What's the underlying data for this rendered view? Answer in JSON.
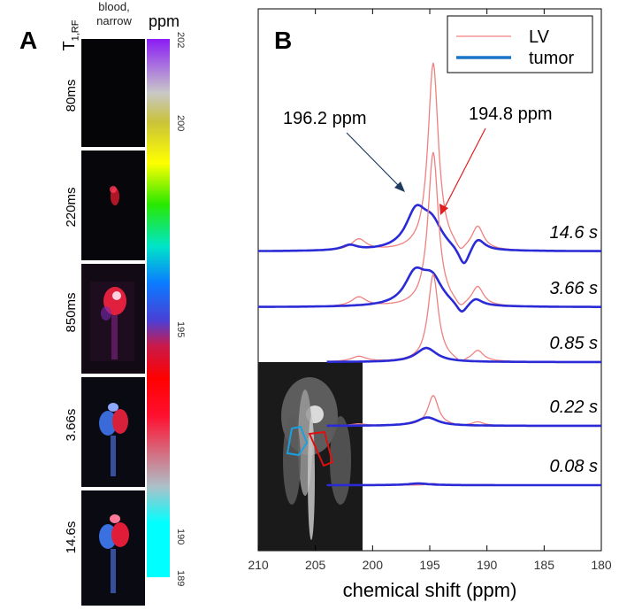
{
  "panel_a": {
    "letter": "A",
    "title_t": "T",
    "title_sub": "1,RF",
    "header_line1": "blood,",
    "header_line2": "narrow",
    "ppm_label": "ppm",
    "rows": [
      {
        "label": "80ms"
      },
      {
        "label": "220ms"
      },
      {
        "label": "850ms"
      },
      {
        "label": "3.66s"
      },
      {
        "label": "14.6s"
      }
    ],
    "colorbar_ticks": [
      "202",
      "200",
      "195",
      "190",
      "189"
    ],
    "colorbar_tick_values": [
      202,
      200,
      195,
      190,
      189
    ],
    "colorbar_range": [
      189,
      202
    ],
    "colorbar_stops": [
      {
        "value": 202,
        "color": "#8a1cf5"
      },
      {
        "value": 200.7,
        "color": "#c8c8c8"
      },
      {
        "value": 200,
        "color": "#c9c23a"
      },
      {
        "value": 199,
        "color": "#ffff00"
      },
      {
        "value": 198,
        "color": "#28e800"
      },
      {
        "value": 197,
        "color": "#00e5c8"
      },
      {
        "value": 196.1,
        "color": "#0a7bff"
      },
      {
        "value": 195.2,
        "color": "#4a3fd6"
      },
      {
        "value": 194.6,
        "color": "#c81a4b"
      },
      {
        "value": 193.8,
        "color": "#ff0000"
      },
      {
        "value": 192.9,
        "color": "#ff1030"
      },
      {
        "value": 191.2,
        "color": "#aec0c8"
      },
      {
        "value": 190.3,
        "color": "#00ffff"
      },
      {
        "value": 189,
        "color": "#00ffff"
      }
    ]
  },
  "panel_b": {
    "letter": "B",
    "annotation_left": "196.2 ppm",
    "annotation_right": "194.8 ppm",
    "colors": {
      "lv": "#f08080",
      "tumor": "#2a2ad6",
      "frame": "#000000"
    }
  },
  "chart_data": {
    "type": "line",
    "title": "",
    "xlabel": "chemical shift (ppm)",
    "ylabel": "",
    "xlim": [
      210,
      180
    ],
    "x_ticks": [
      210,
      205,
      200,
      195,
      190,
      185,
      180
    ],
    "legend": {
      "position": "top-right",
      "entries": [
        "LV",
        "tumor"
      ]
    },
    "series": [
      {
        "name": "LV",
        "color": "#f08080"
      },
      {
        "name": "tumor",
        "color": "#2a2ad6"
      }
    ],
    "traces": [
      {
        "label": "14.6 s",
        "baseline": 0.0,
        "lv_peak": 5.6,
        "tumor_peaks": [
          {
            "center": 196.2,
            "height": 1.1
          },
          {
            "center": 194.8,
            "height": 0.7
          }
        ],
        "tumor_dip": {
          "center": 192.0,
          "depth": -0.6
        }
      },
      {
        "label": "3.66 s",
        "baseline": 0.0,
        "lv_peak": 4.6,
        "tumor_peaks": [
          {
            "center": 196.3,
            "height": 0.9
          },
          {
            "center": 194.8,
            "height": 0.75
          }
        ],
        "tumor_dip": {
          "center": 192.2,
          "depth": -0.35
        }
      },
      {
        "label": "0.85 s",
        "baseline": 0.0,
        "lv_peak": 2.6,
        "tumor_peaks": [
          {
            "center": 195.3,
            "height": 0.42
          }
        ],
        "tumor_dip": null
      },
      {
        "label": "0.22 s",
        "baseline": 0.0,
        "lv_peak": 0.9,
        "tumor_peaks": [
          {
            "center": 195.2,
            "height": 0.25
          }
        ],
        "tumor_dip": null
      },
      {
        "label": "0.08 s",
        "baseline": 0.0,
        "lv_peak": 0.05,
        "tumor_peaks": [
          {
            "center": 196.0,
            "height": 0.05
          }
        ],
        "tumor_dip": null
      }
    ],
    "inset": {
      "kind": "grayscale MRI with tumor ROI (blue) and LV ROI (red)"
    }
  }
}
